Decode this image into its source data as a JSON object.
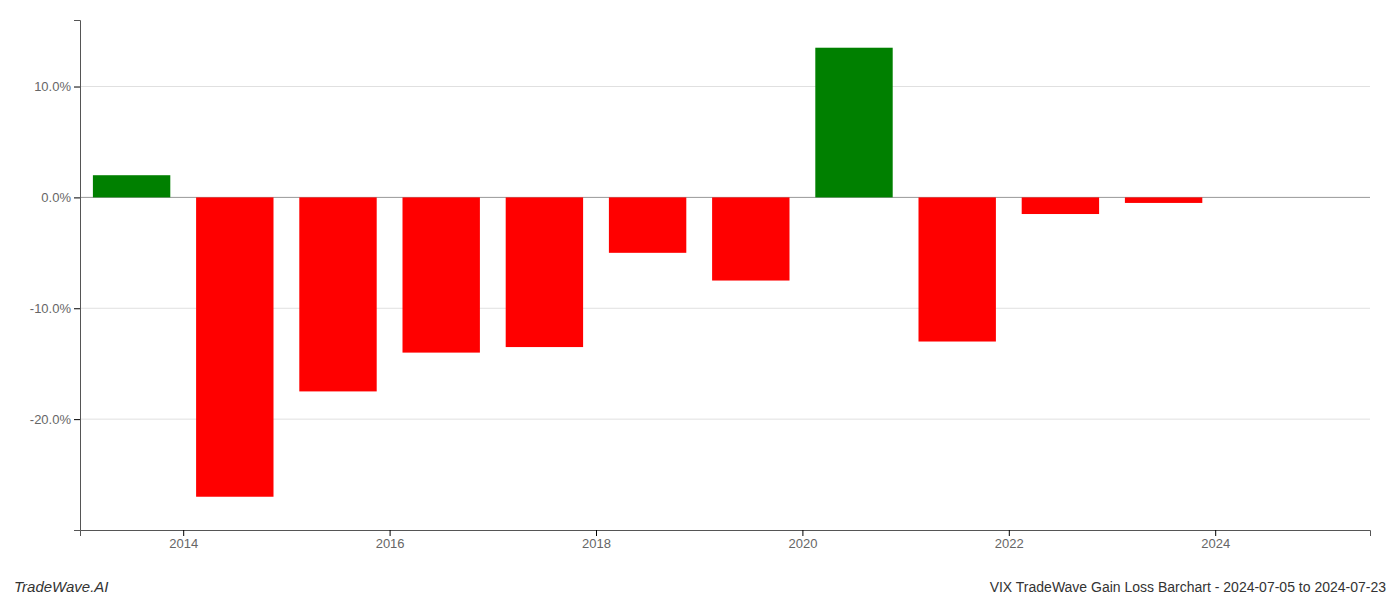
{
  "chart_data": {
    "type": "bar",
    "x": [
      2013.5,
      2014.5,
      2015.5,
      2016.5,
      2017.5,
      2018.5,
      2019.5,
      2020.5,
      2021.5,
      2022.5,
      2023.5
    ],
    "values": [
      2.0,
      -27.0,
      -17.5,
      -14.0,
      -13.5,
      -5.0,
      -7.5,
      13.5,
      -13.0,
      -1.5,
      -0.5
    ],
    "colors": [
      "#008000",
      "#ff0000",
      "#ff0000",
      "#ff0000",
      "#ff0000",
      "#ff0000",
      "#ff0000",
      "#008000",
      "#ff0000",
      "#ff0000",
      "#ff0000"
    ],
    "xlim": [
      2013.0,
      2025.5
    ],
    "xticks": [
      2014,
      2016,
      2018,
      2020,
      2022,
      2024
    ],
    "ylim": [
      -30,
      16
    ],
    "yticks": [
      {
        "value": -20.0,
        "label": "-20.0%"
      },
      {
        "value": -10.0,
        "label": "-10.0%"
      },
      {
        "value": 0.0,
        "label": "0.0%"
      },
      {
        "value": 10.0,
        "label": "10.0%"
      }
    ],
    "grid": true,
    "annotations": [
      "TradeWave.AI",
      "VIX TradeWave Gain Loss Barchart - 2024-07-05 to 2024-07-23"
    ]
  }
}
